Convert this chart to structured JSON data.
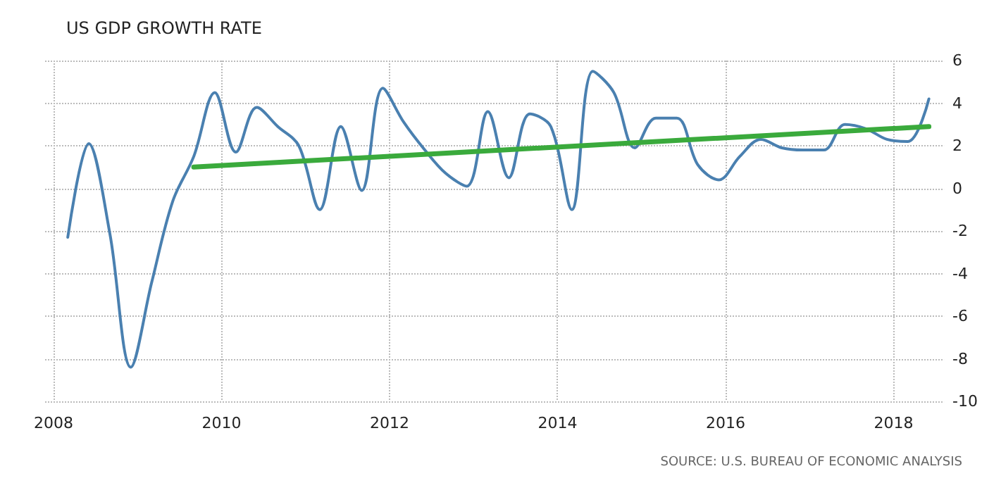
{
  "chart_data": {
    "type": "line",
    "title": "US GDP GROWTH RATE",
    "annotations": [
      "SOURCE: U.S. BUREAU OF ECONOMIC ANALYSIS"
    ],
    "series": [
      {
        "color": "#4a80b0",
        "x": [
          2008.17,
          2008.42,
          2008.67,
          2008.92,
          2009.17,
          2009.42,
          2009.67,
          2009.92,
          2010.17,
          2010.42,
          2010.67,
          2010.92,
          2011.17,
          2011.42,
          2011.67,
          2011.92,
          2012.17,
          2012.42,
          2012.67,
          2012.92,
          2013.17,
          2013.42,
          2013.67,
          2013.92,
          2014.17,
          2014.42,
          2014.67,
          2014.92,
          2015.17,
          2015.42,
          2015.67,
          2015.92,
          2016.17,
          2016.42,
          2016.67,
          2016.92,
          2017.17,
          2017.42,
          2017.67,
          2017.92,
          2018.17,
          2018.42
        ],
        "values": [
          -2.3,
          2.1,
          -2.1,
          -8.4,
          -4.4,
          -0.6,
          1.5,
          4.5,
          1.7,
          3.8,
          2.9,
          2.0,
          -1.0,
          2.9,
          -0.1,
          4.7,
          3.1,
          1.8,
          0.7,
          0.1,
          3.6,
          0.5,
          3.5,
          2.9,
          -1.0,
          5.5,
          4.5,
          1.9,
          3.3,
          3.3,
          1.1,
          0.4,
          1.5,
          2.3,
          1.9,
          1.8,
          1.8,
          3.0,
          2.8,
          2.3,
          2.2,
          4.2
        ]
      },
      {
        "type": "line",
        "color": "#3aaa3c",
        "x": [
          2009.67,
          2018.42
        ],
        "values": [
          1.0,
          2.9
        ]
      }
    ],
    "xlim": [
      2007.9,
      2018.6
    ],
    "xticks": [
      2008,
      2010,
      2012,
      2014,
      2016,
      2018
    ],
    "ylim": [
      -10,
      6
    ],
    "yticks": [
      -10,
      -8,
      -6,
      -4,
      -2,
      0,
      2,
      4,
      6
    ],
    "grid": true,
    "marker": "none",
    "line_style": "solid"
  }
}
